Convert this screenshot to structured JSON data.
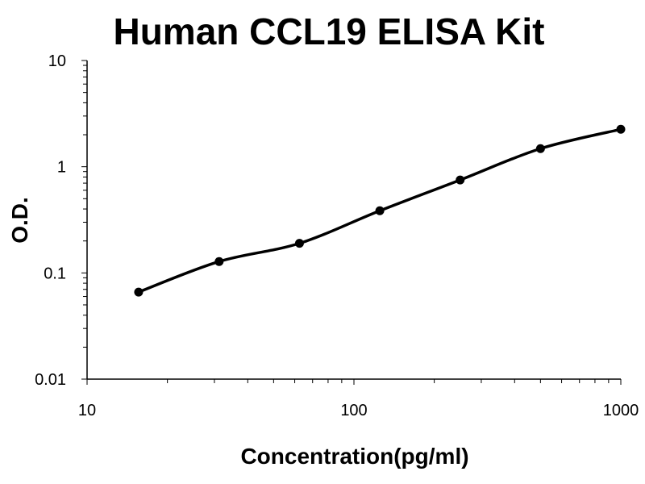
{
  "chart_data": {
    "type": "scatter",
    "title": "Human CCL19 ELISA Kit",
    "xlabel": "Concentration(pg/ml)",
    "ylabel": "O.D.",
    "xscale": "log",
    "yscale": "log",
    "xlim": [
      10,
      1000
    ],
    "ylim": [
      0.01,
      10
    ],
    "x_ticks": [
      "10",
      "100",
      "1000"
    ],
    "y_ticks": [
      "0.01",
      "0.1",
      "1",
      "10"
    ],
    "grid": false,
    "legend": "none",
    "series": [
      {
        "x": [
          15.6,
          31.25,
          62.5,
          125,
          250,
          500,
          1000
        ],
        "y": [
          0.066,
          0.128,
          0.19,
          0.385,
          0.75,
          1.48,
          2.25
        ]
      }
    ],
    "fit_curve": true
  }
}
